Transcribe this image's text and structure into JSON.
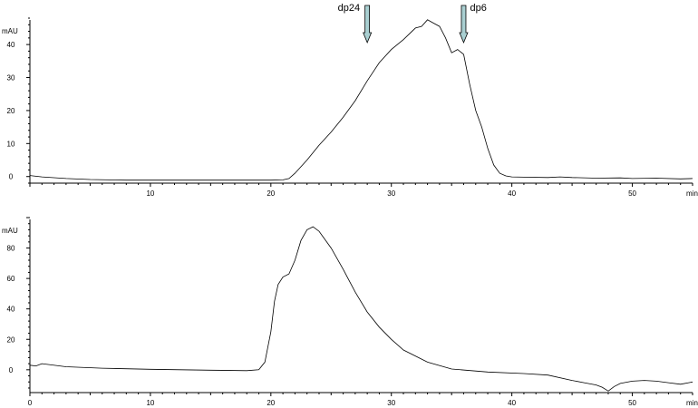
{
  "chart_data": [
    {
      "type": "line",
      "ylabel": "mAU",
      "xunit": "min",
      "xlim": [
        0,
        55
      ],
      "ylim": [
        -2,
        48
      ],
      "xticks": [
        10,
        20,
        30,
        40,
        50
      ],
      "yticks": [
        0,
        10,
        20,
        30,
        40
      ],
      "markers": [
        {
          "label": "dp24",
          "x": 28
        },
        {
          "label": "dp6",
          "x": 36
        }
      ],
      "series": [
        {
          "x": [
            0,
            1,
            3,
            5,
            8,
            10,
            15,
            20,
            21,
            21.5,
            22,
            23,
            24,
            25,
            26,
            27,
            28,
            29,
            30,
            31,
            32,
            32.5,
            33,
            33.5,
            34,
            34.5,
            35,
            35.5,
            36,
            36.5,
            37,
            37.5,
            38,
            38.5,
            39,
            39.5,
            40,
            41,
            43,
            44,
            45,
            47,
            49,
            50,
            52,
            54,
            55
          ],
          "y": [
            0.3,
            -0.1,
            -0.6,
            -0.9,
            -1.1,
            -1.1,
            -1.1,
            -1.1,
            -1.0,
            -0.6,
            1,
            5,
            9.5,
            13.5,
            18,
            23,
            29,
            34.5,
            38.5,
            41.5,
            45,
            45.5,
            47.5,
            46.5,
            45.5,
            42,
            37.5,
            38.5,
            37,
            28,
            20,
            15,
            8.5,
            3.5,
            1.0,
            0.2,
            -0.1,
            -0.2,
            -0.3,
            -0.1,
            -0.3,
            -0.5,
            -0.4,
            -0.6,
            -0.5,
            -0.7,
            -0.6
          ]
        }
      ]
    },
    {
      "type": "line",
      "ylabel": "mAU",
      "xunit": "min",
      "xlim": [
        0,
        55
      ],
      "ylim": [
        -15,
        100
      ],
      "xticks": [
        0,
        10,
        20,
        30,
        40,
        50
      ],
      "yticks": [
        0,
        20,
        40,
        60,
        80
      ],
      "series": [
        {
          "x": [
            0,
            0.5,
            1,
            3,
            6,
            10,
            15,
            18,
            19,
            19.5,
            20,
            20.3,
            20.6,
            21,
            21.5,
            22,
            22.5,
            23,
            23.5,
            24,
            25,
            26,
            27,
            28,
            29,
            30,
            31,
            33,
            35,
            38,
            41,
            43,
            45,
            46,
            47,
            47.5,
            48,
            48.5,
            49,
            50,
            51,
            52,
            53,
            54,
            55
          ],
          "y": [
            3,
            2.5,
            4,
            2,
            1,
            0.3,
            -0.3,
            -0.6,
            0,
            5,
            25,
            45,
            56,
            61,
            63,
            72,
            85,
            92,
            94,
            91,
            80,
            66,
            51,
            38,
            28,
            20,
            13,
            5,
            0.5,
            -1.5,
            -2.5,
            -3.5,
            -7,
            -8.5,
            -10,
            -11.5,
            -14,
            -11,
            -9,
            -7.5,
            -7,
            -7.5,
            -8.5,
            -9.5,
            -8
          ]
        }
      ]
    }
  ]
}
